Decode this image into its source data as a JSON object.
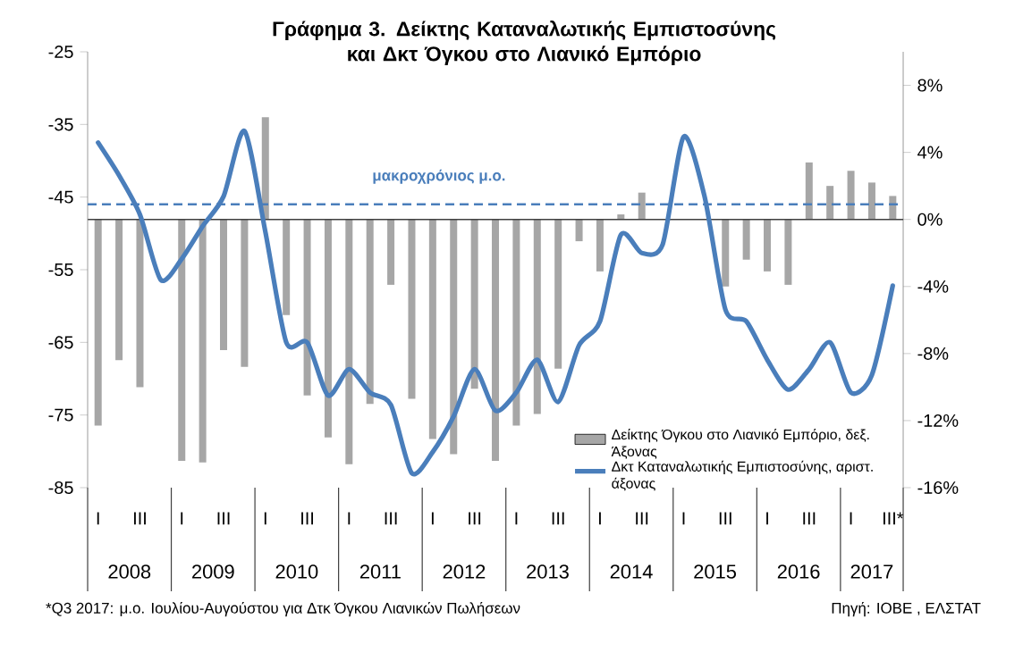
{
  "chart_data": {
    "type": "bar",
    "title": "Γράφημα 3. Δείκτης Καταναλωτικής Εμπιστοσύνης  και Δκτ Όγκου στο Λιανικό Εμπόριο",
    "categories": [
      "I",
      null,
      "III",
      null,
      "I",
      null,
      "III",
      null,
      "I",
      null,
      "III",
      null,
      "I",
      null,
      "III",
      null,
      "I",
      null,
      "III",
      null,
      "I",
      null,
      "III",
      null,
      "I",
      null,
      "III",
      null,
      "I",
      null,
      "III",
      null,
      "I",
      null,
      "III",
      null,
      "I",
      null,
      "III*"
    ],
    "series": [
      {
        "name": "Δείκτης Όγκου στο Λιανικό Εμπόριο, δεξ. Άξονας",
        "axis": "y2",
        "color": "#a6a6a6",
        "values": [
          -12.3,
          -8.4,
          -10.0,
          null,
          -14.4,
          -14.5,
          -7.8,
          -8.8,
          6.1,
          -5.7,
          -10.5,
          -13.0,
          -14.6,
          -11.0,
          -3.9,
          -10.7,
          -13.1,
          -14.0,
          -10.1,
          -14.4,
          -12.3,
          -11.6,
          -8.9,
          -1.3,
          -3.1,
          0.3,
          1.6,
          null,
          null,
          null,
          -4.0,
          -2.4,
          -3.1,
          -3.9,
          3.4,
          2.0,
          2.9,
          2.2,
          1.4
        ]
      },
      {
        "name": "Δκτ Καταναλωτικής Εμπιστοσύνης, αριστ. άξονας",
        "type": "line",
        "color": "#4a7ebb",
        "line_style": "solid",
        "values": [
          -37.5,
          -42.0,
          -47.4,
          -56.4,
          -53.5,
          -49.0,
          -44.9,
          -35.9,
          -49.8,
          -65.0,
          -65.0,
          -72.3,
          -68.7,
          -71.9,
          -73.6,
          -83.0,
          -80.1,
          -75.2,
          -68.7,
          -74.4,
          -71.9,
          -67.4,
          -73.2,
          -65.4,
          -62.1,
          -50.2,
          -52.7,
          -51.5,
          -36.7,
          -44.9,
          -60.5,
          -62.1,
          -67.4,
          -71.5,
          -68.7,
          -65.0,
          -71.9,
          -69.5,
          -57.2
        ]
      }
    ],
    "ylim": [
      -85,
      -25
    ],
    "yticks": [
      -85,
      -75,
      -65,
      -55,
      -45,
      -35,
      -25
    ],
    "y2lim": [
      -16,
      10
    ],
    "y2ticks": [
      {
        "value": -16,
        "label": "-16%"
      },
      {
        "value": -12,
        "label": "-12%"
      },
      {
        "value": -8,
        "label": "-8%"
      },
      {
        "value": -4,
        "label": "-4%"
      },
      {
        "value": 0,
        "label": "0%"
      },
      {
        "value": 4,
        "label": "4%"
      },
      {
        "value": 8,
        "label": "8%"
      }
    ],
    "ref_lines": [
      {
        "axis": "y",
        "value": -46,
        "label": "μακροχρόνιος μ.ο.",
        "color": "#4a7ebb",
        "line_style": "dashed"
      }
    ],
    "legend": "bottom right",
    "annotations": [
      "2008",
      "2009",
      "2010",
      "2011",
      "2012",
      "2013",
      "2014",
      "2015",
      "2016",
      "2017",
      "*Q3 2017: μ.ο. Ιουλίου-Αυγούστου για Δτκ Όγκου Λιανικών Πωλήσεων",
      "Πηγή: ΙΟΒΕ , ΕΛΣΤΑΤ"
    ]
  }
}
